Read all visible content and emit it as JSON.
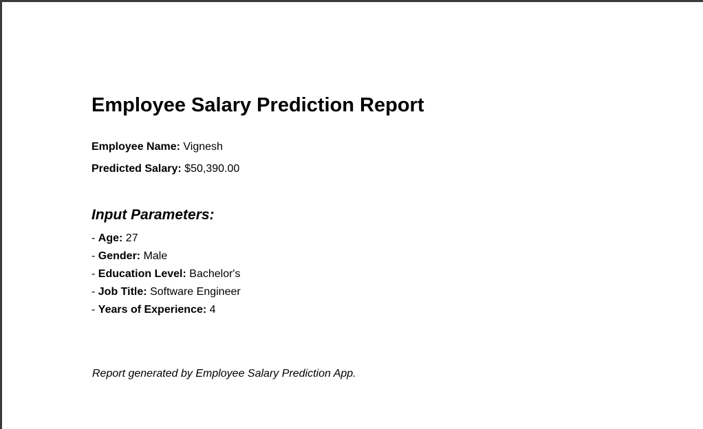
{
  "report": {
    "title": "Employee Salary Prediction Report",
    "employee_name": {
      "label": "Employee Name:",
      "value": "Vignesh"
    },
    "predicted_salary": {
      "label": "Predicted Salary:",
      "value": "$50,390.00"
    },
    "input_section": {
      "heading": "Input Parameters:",
      "bullet": "- ",
      "params": [
        {
          "label": "Age:",
          "value": "27"
        },
        {
          "label": "Gender:",
          "value": "Male"
        },
        {
          "label": "Education Level:",
          "value": "Bachelor's"
        },
        {
          "label": "Job Title:",
          "value": "Software Engineer"
        },
        {
          "label": "Years of Experience:",
          "value": "4"
        }
      ]
    },
    "footer": "Report generated by Employee Salary Prediction App."
  }
}
